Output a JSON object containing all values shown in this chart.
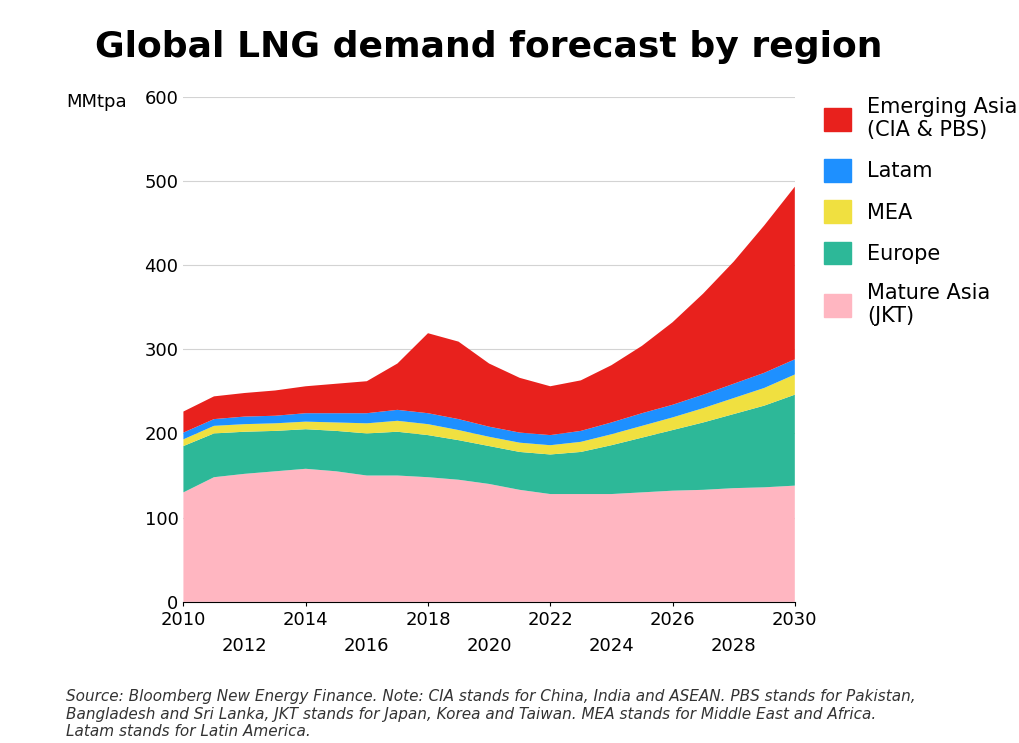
{
  "title": "Global LNG demand forecast by region",
  "ylabel": "MMtpa",
  "years": [
    2010,
    2011,
    2012,
    2013,
    2014,
    2015,
    2016,
    2017,
    2018,
    2019,
    2020,
    2021,
    2022,
    2023,
    2024,
    2025,
    2026,
    2027,
    2028,
    2029,
    2030
  ],
  "mature_asia": [
    130,
    148,
    152,
    155,
    158,
    155,
    150,
    150,
    148,
    145,
    140,
    133,
    128,
    128,
    128,
    130,
    132,
    133,
    135,
    136,
    138
  ],
  "europe": [
    55,
    52,
    50,
    48,
    47,
    48,
    50,
    52,
    50,
    47,
    45,
    45,
    47,
    50,
    58,
    65,
    72,
    80,
    88,
    97,
    108
  ],
  "mea": [
    8,
    9,
    9,
    9,
    9,
    10,
    12,
    13,
    13,
    12,
    11,
    11,
    11,
    12,
    13,
    14,
    15,
    17,
    19,
    21,
    24
  ],
  "latam": [
    8,
    8,
    9,
    9,
    10,
    11,
    12,
    13,
    13,
    13,
    12,
    12,
    12,
    13,
    14,
    15,
    15,
    16,
    17,
    18,
    18
  ],
  "emerging_asia": [
    25,
    27,
    28,
    30,
    32,
    35,
    38,
    55,
    95,
    92,
    75,
    65,
    58,
    60,
    68,
    80,
    98,
    120,
    145,
    175,
    205
  ],
  "colors": {
    "mature_asia": "#FFB6C1",
    "europe": "#2DB898",
    "mea": "#F0E040",
    "latam": "#1E90FF",
    "emerging_asia": "#E8211D"
  },
  "legend_labels": {
    "emerging_asia": "Emerging Asia\n(CIA & PBS)",
    "latam": "Latam",
    "mea": "MEA",
    "europe": "Europe",
    "mature_asia": "Mature Asia\n(JKT)"
  },
  "ylim": [
    0,
    600
  ],
  "yticks": [
    0,
    100,
    200,
    300,
    400,
    500,
    600
  ],
  "primary_ticks": [
    2010,
    2014,
    2018,
    2022,
    2026,
    2030
  ],
  "secondary_ticks": [
    2012,
    2016,
    2020,
    2024,
    2028
  ],
  "source_text": "Source: Bloomberg New Energy Finance. Note: CIA stands for China, India and ASEAN. PBS stands for Pakistan,\nBangladesh and Sri Lanka, JKT stands for Japan, Korea and Taiwan. MEA stands for Middle East and Africa.\nLatam stands for Latin America.",
  "background_color": "#FFFFFF",
  "title_fontsize": 26,
  "tick_fontsize": 13,
  "legend_fontsize": 15,
  "source_fontsize": 11
}
